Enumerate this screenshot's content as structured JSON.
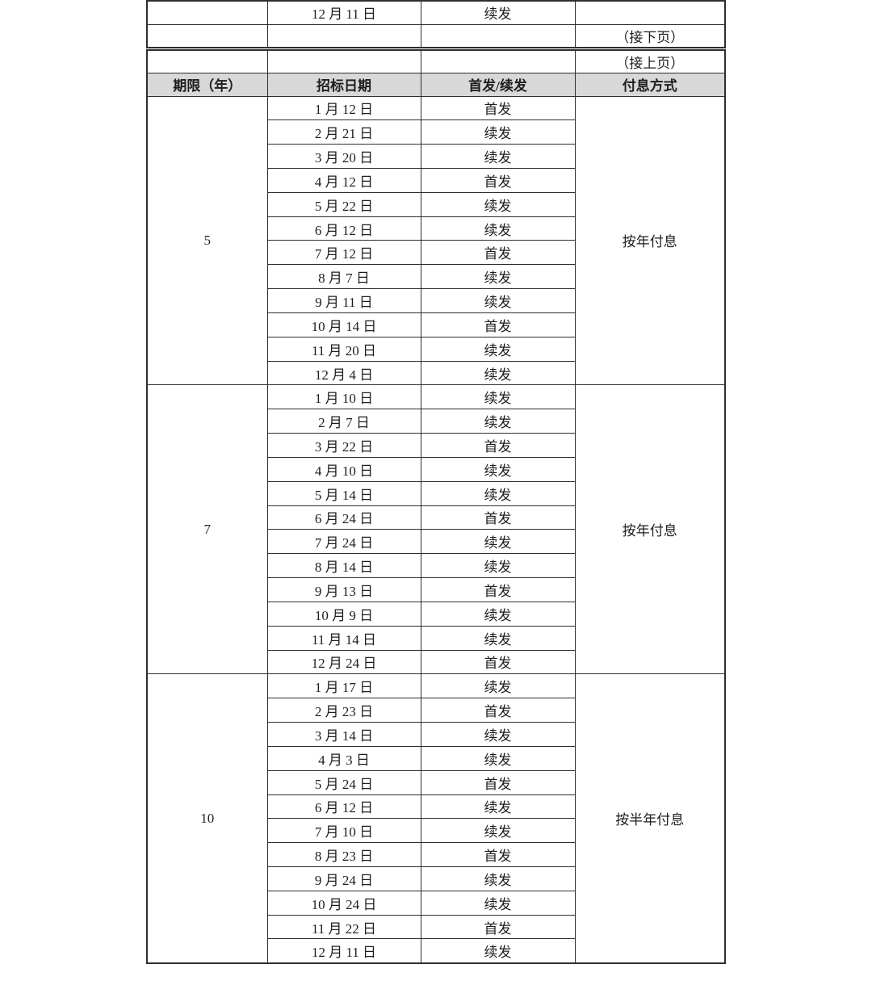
{
  "document": {
    "fragment_row": {
      "term": "",
      "date": "12 月 11 日",
      "issue": "续发",
      "payment": ""
    },
    "continued_next_label": "（接下页）",
    "continued_prev_label": "（接上页）",
    "header": {
      "columns": [
        "期限（年）",
        "招标日期",
        "首发/续发",
        "付息方式"
      ]
    },
    "groups": [
      {
        "term": "5",
        "payment": "按年付息",
        "rows": [
          {
            "date": "1 月 12 日",
            "issue": "首发"
          },
          {
            "date": "2 月 21 日",
            "issue": "续发"
          },
          {
            "date": "3 月 20 日",
            "issue": "续发"
          },
          {
            "date": "4 月 12 日",
            "issue": "首发"
          },
          {
            "date": "5 月 22 日",
            "issue": "续发"
          },
          {
            "date": "6 月 12 日",
            "issue": "续发"
          },
          {
            "date": "7 月 12 日",
            "issue": "首发"
          },
          {
            "date": "8 月 7 日",
            "issue": "续发"
          },
          {
            "date": "9 月 11 日",
            "issue": "续发"
          },
          {
            "date": "10 月 14 日",
            "issue": "首发"
          },
          {
            "date": "11 月 20 日",
            "issue": "续发"
          },
          {
            "date": "12 月 4 日",
            "issue": "续发"
          }
        ]
      },
      {
        "term": "7",
        "payment": "按年付息",
        "rows": [
          {
            "date": "1 月 10 日",
            "issue": "续发"
          },
          {
            "date": "2 月 7 日",
            "issue": "续发"
          },
          {
            "date": "3 月 22 日",
            "issue": "首发"
          },
          {
            "date": "4 月 10 日",
            "issue": "续发"
          },
          {
            "date": "5 月 14 日",
            "issue": "续发"
          },
          {
            "date": "6 月 24 日",
            "issue": "首发"
          },
          {
            "date": "7 月 24 日",
            "issue": "续发"
          },
          {
            "date": "8 月 14 日",
            "issue": "续发"
          },
          {
            "date": "9 月 13 日",
            "issue": "首发"
          },
          {
            "date": "10 月 9 日",
            "issue": "续发"
          },
          {
            "date": "11 月 14 日",
            "issue": "续发"
          },
          {
            "date": "12 月 24 日",
            "issue": "首发"
          }
        ]
      },
      {
        "term": "10",
        "payment": "按半年付息",
        "rows": [
          {
            "date": "1 月 17 日",
            "issue": "续发"
          },
          {
            "date": "2 月 23 日",
            "issue": "首发"
          },
          {
            "date": "3 月 14 日",
            "issue": "续发"
          },
          {
            "date": "4 月 3 日",
            "issue": "续发"
          },
          {
            "date": "5 月 24 日",
            "issue": "首发"
          },
          {
            "date": "6 月 12 日",
            "issue": "续发"
          },
          {
            "date": "7 月 10 日",
            "issue": "续发"
          },
          {
            "date": "8 月 23 日",
            "issue": "首发"
          },
          {
            "date": "9 月 24 日",
            "issue": "续发"
          },
          {
            "date": "10 月 24 日",
            "issue": "续发"
          },
          {
            "date": "11 月 22 日",
            "issue": "首发"
          },
          {
            "date": "12 月 11 日",
            "issue": "续发"
          }
        ]
      }
    ],
    "colors": {
      "header_bg": "#d8d8d8",
      "border": "#2e2e2e",
      "text": "#1e1e1e",
      "page_bg": "#ffffff"
    }
  }
}
